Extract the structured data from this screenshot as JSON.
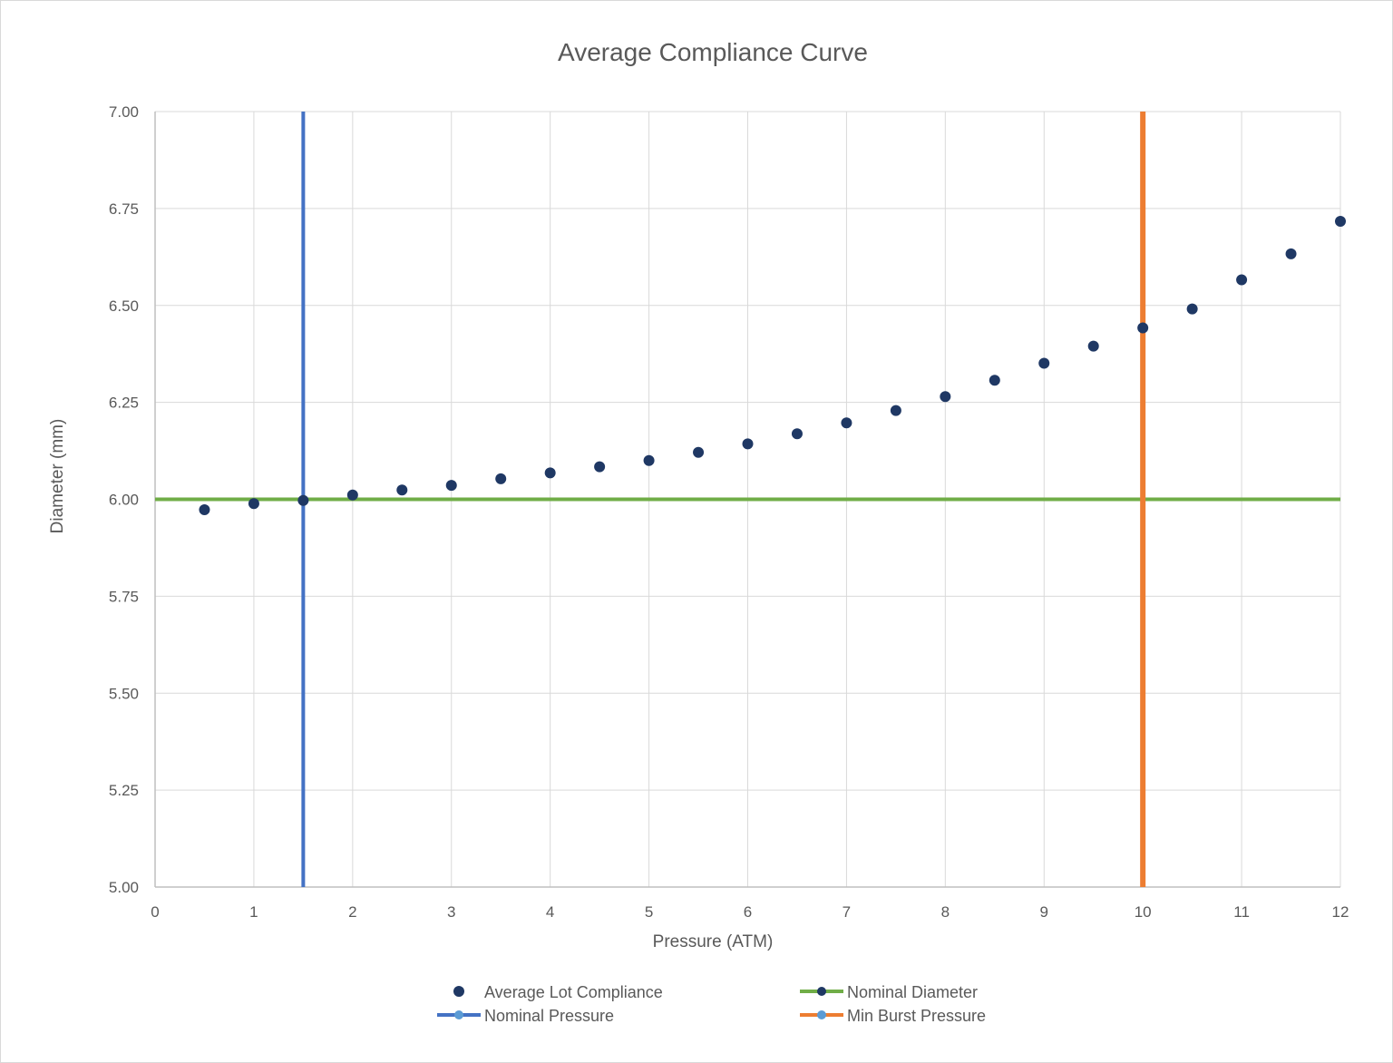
{
  "chart_data": {
    "type": "scatter",
    "title": "Average Compliance Curve",
    "xlabel": "Pressure (ATM)",
    "ylabel": "Diameter (mm)",
    "xlim": [
      0,
      12
    ],
    "ylim": [
      5.0,
      7.0
    ],
    "x_ticks": [
      "0",
      "1",
      "2",
      "3",
      "4",
      "5",
      "6",
      "7",
      "8",
      "9",
      "10",
      "11",
      "12"
    ],
    "y_ticks": [
      "5.00",
      "5.25",
      "5.50",
      "5.75",
      "6.00",
      "6.25",
      "6.50",
      "6.75",
      "7.00"
    ],
    "grid": true,
    "legend_position": "bottom",
    "series": [
      {
        "name": "Average Lot Compliance",
        "kind": "markers",
        "color": "#1f3864",
        "x": [
          0.5,
          1,
          1.5,
          2,
          2.5,
          3,
          3.5,
          4,
          4.5,
          5,
          5.5,
          6,
          6.5,
          7,
          7.5,
          8,
          8.5,
          9,
          9.5,
          10,
          10.5,
          11,
          11.5,
          12
        ],
        "y": [
          5.973,
          5.989,
          5.997,
          6.011,
          6.024,
          6.036,
          6.053,
          6.068,
          6.084,
          6.1,
          6.121,
          6.143,
          6.169,
          6.197,
          6.229,
          6.265,
          6.307,
          6.351,
          6.395,
          6.442,
          6.491,
          6.566,
          6.633,
          6.717
        ]
      },
      {
        "name": "Nominal Diameter",
        "kind": "hline",
        "color": "#70ad47",
        "y": 6.0
      },
      {
        "name": "Nominal Pressure",
        "kind": "vline",
        "color": "#4472c4",
        "x": 1.5
      },
      {
        "name": "Min Burst Pressure",
        "kind": "vline",
        "color": "#ed7d31",
        "x": 10
      }
    ]
  },
  "legend_marker_color": "#5b9bd5",
  "grid_color": "#d9d9d9",
  "axis_color": "#bfbfbf"
}
